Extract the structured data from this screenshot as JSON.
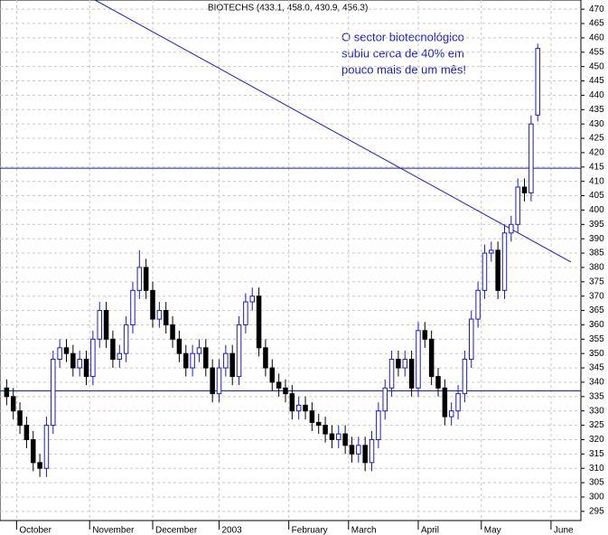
{
  "chart_data": {
    "type": "candlestick",
    "title": "BIOTECHS (433.1, 458.0, 430.9, 456.3)",
    "annotation": [
      "O sector biotecnológico",
      "subiu cerca de 40%  em",
      "pouco mais de um mês!"
    ],
    "x": [
      2,
      4,
      6,
      8,
      10,
      12,
      14,
      16,
      18,
      20,
      22,
      24,
      26,
      28,
      30,
      32,
      34,
      36,
      38,
      40,
      42,
      44,
      46,
      48,
      50,
      52,
      54,
      56,
      58,
      60,
      62,
      64,
      66,
      68,
      70,
      72,
      74,
      76,
      78,
      80,
      82,
      84,
      86,
      88,
      90,
      92,
      94,
      96,
      98,
      100,
      102,
      104,
      106,
      108,
      110,
      112,
      114,
      116,
      118,
      120,
      122,
      124,
      126,
      128,
      130,
      132,
      134,
      136,
      138,
      140,
      142,
      144,
      146,
      148,
      150,
      152,
      154,
      156,
      158,
      160,
      162
    ],
    "open": [
      338,
      335,
      330,
      325,
      320,
      312,
      310,
      325,
      348,
      352,
      350,
      345,
      348,
      342,
      355,
      365,
      355,
      348,
      350,
      360,
      372,
      380,
      372,
      362,
      365,
      360,
      355,
      350,
      345,
      350,
      352,
      345,
      336,
      345,
      350,
      342,
      360,
      368,
      370,
      352,
      345,
      340,
      338,
      336,
      330,
      332,
      330,
      326,
      325,
      322,
      320,
      322,
      318,
      315,
      318,
      312,
      320,
      330,
      338,
      348,
      345,
      348,
      338,
      358,
      355,
      342,
      338,
      328,
      330,
      336,
      348,
      362,
      372,
      385,
      386,
      372,
      392,
      395,
      408,
      406,
      433.1
    ],
    "high": [
      341,
      338,
      333,
      328,
      323,
      315,
      328,
      351,
      355,
      355,
      353,
      351,
      351,
      358,
      368,
      368,
      358,
      353,
      363,
      375,
      386,
      383,
      375,
      368,
      368,
      363,
      358,
      353,
      353,
      355,
      355,
      348,
      348,
      353,
      353,
      363,
      371,
      373,
      373,
      355,
      348,
      343,
      341,
      339,
      335,
      335,
      333,
      329,
      328,
      325,
      325,
      325,
      321,
      321,
      321,
      323,
      333,
      341,
      351,
      351,
      351,
      351,
      361,
      361,
      358,
      345,
      341,
      333,
      339,
      351,
      365,
      375,
      388,
      389,
      389,
      395,
      398,
      411,
      411,
      433,
      458.0
    ],
    "low": [
      332,
      327,
      322,
      317,
      309,
      307,
      307,
      322,
      345,
      347,
      342,
      342,
      339,
      339,
      352,
      352,
      345,
      345,
      347,
      357,
      369,
      369,
      359,
      359,
      357,
      352,
      347,
      342,
      342,
      347,
      342,
      333,
      333,
      342,
      339,
      339,
      357,
      365,
      349,
      342,
      337,
      335,
      333,
      327,
      327,
      327,
      323,
      322,
      319,
      317,
      317,
      315,
      312,
      312,
      309,
      309,
      317,
      327,
      335,
      342,
      342,
      335,
      335,
      352,
      339,
      335,
      325,
      325,
      327,
      333,
      345,
      359,
      369,
      382,
      369,
      369,
      389,
      392,
      403,
      403,
      430.9
    ],
    "close": [
      335,
      330,
      325,
      320,
      312,
      310,
      325,
      348,
      352,
      350,
      345,
      348,
      342,
      355,
      365,
      355,
      348,
      350,
      360,
      372,
      380,
      372,
      362,
      365,
      360,
      355,
      350,
      345,
      350,
      352,
      345,
      336,
      345,
      350,
      342,
      360,
      368,
      370,
      352,
      345,
      340,
      338,
      336,
      330,
      332,
      330,
      326,
      325,
      322,
      320,
      322,
      318,
      315,
      318,
      312,
      320,
      330,
      338,
      348,
      345,
      348,
      338,
      358,
      355,
      342,
      338,
      328,
      330,
      336,
      348,
      362,
      372,
      385,
      386,
      372,
      392,
      395,
      408,
      406,
      430,
      456.3
    ],
    "up_color": "#1a1acc",
    "down_color": "#000000",
    "line_color": "#1a1acc",
    "hlines": [
      414.6,
      337
    ],
    "trendline": {
      "x": [
        28.6,
        172
      ],
      "y": [
        473.2,
        381.9
      ]
    },
    "xlim": [
      0,
      175
    ],
    "xticks": [
      {
        "value": 5,
        "label": "October"
      },
      {
        "value": 27,
        "label": "November"
      },
      {
        "value": 46,
        "label": "December"
      },
      {
        "value": 66,
        "label": "2003"
      },
      {
        "value": 87,
        "label": "February"
      },
      {
        "value": 105,
        "label": "March"
      },
      {
        "value": 126,
        "label": "April"
      },
      {
        "value": 145,
        "label": "May"
      },
      {
        "value": 166,
        "label": "June"
      }
    ],
    "ylim": [
      291.8,
      473.2
    ],
    "yticks": [
      295,
      300,
      305,
      310,
      315,
      320,
      325,
      330,
      335,
      340,
      345,
      350,
      355,
      360,
      365,
      370,
      375,
      380,
      385,
      390,
      395,
      400,
      405,
      410,
      415,
      420,
      425,
      430,
      435,
      440,
      445,
      450,
      455,
      460,
      465,
      470
    ],
    "grid": true
  }
}
